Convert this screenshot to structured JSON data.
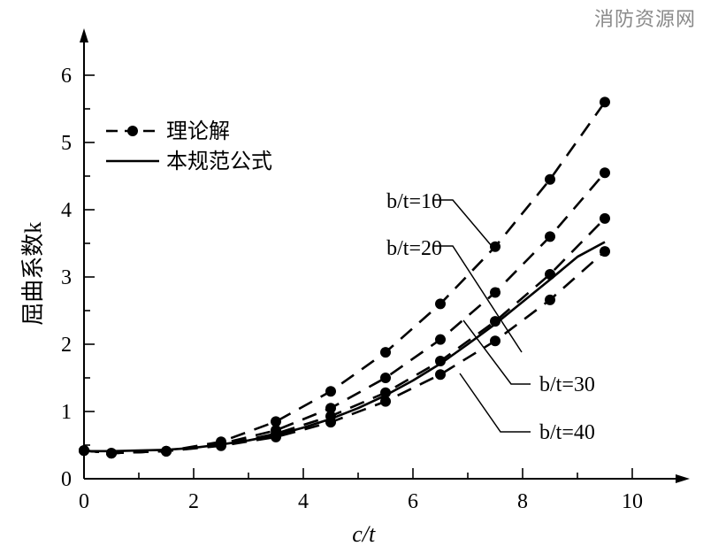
{
  "watermark": "消防资源网",
  "chart_data": {
    "type": "line",
    "title": "",
    "xlabel": "c/t",
    "ylabel": "屈曲系数k",
    "xlim": [
      0,
      10
    ],
    "ylim": [
      0,
      6
    ],
    "xticks": [
      0,
      2,
      4,
      6,
      8,
      10
    ],
    "yticks": [
      0,
      1,
      2,
      3,
      4,
      5,
      6
    ],
    "grid": false,
    "legend": {
      "position": "top-left",
      "entries": [
        {
          "label": "理论解",
          "style": "dashed-with-markers"
        },
        {
          "label": "本规范公式",
          "style": "solid"
        }
      ]
    },
    "series": [
      {
        "name": "b/t=10",
        "kind": "theory",
        "x": [
          0,
          0.5,
          1.5,
          2.5,
          3.5,
          4.5,
          5.5,
          6.5,
          7.5,
          8.5,
          9.5
        ],
        "y": [
          0.42,
          0.38,
          0.41,
          0.55,
          0.85,
          1.3,
          1.88,
          2.6,
          3.45,
          4.45,
          5.6
        ]
      },
      {
        "name": "b/t=20",
        "kind": "theory",
        "x": [
          0,
          0.5,
          1.5,
          2.5,
          3.5,
          4.5,
          5.5,
          6.5,
          7.5,
          8.5,
          9.5
        ],
        "y": [
          0.42,
          0.38,
          0.41,
          0.52,
          0.72,
          1.05,
          1.5,
          2.07,
          2.77,
          3.6,
          4.55
        ]
      },
      {
        "name": "b/t=30",
        "kind": "theory",
        "x": [
          0,
          0.5,
          1.5,
          2.5,
          3.5,
          4.5,
          5.5,
          6.5,
          7.5,
          8.5,
          9.5
        ],
        "y": [
          0.42,
          0.38,
          0.41,
          0.5,
          0.67,
          0.93,
          1.28,
          1.75,
          2.34,
          3.04,
          3.87
        ]
      },
      {
        "name": "b/t=40",
        "kind": "theory",
        "x": [
          0,
          0.5,
          1.5,
          2.5,
          3.5,
          4.5,
          5.5,
          6.5,
          7.5,
          8.5,
          9.5
        ],
        "y": [
          0.42,
          0.38,
          0.41,
          0.49,
          0.62,
          0.84,
          1.15,
          1.55,
          2.05,
          2.66,
          3.38
        ]
      },
      {
        "name": "本规范公式",
        "kind": "formula",
        "x": [
          0,
          0.5,
          1,
          1.5,
          2,
          2.5,
          3,
          3.5,
          4,
          4.5,
          5,
          5.5,
          6,
          6.5,
          7,
          7.5,
          8,
          8.5,
          9,
          9.5
        ],
        "y": [
          0.41,
          0.41,
          0.42,
          0.43,
          0.46,
          0.51,
          0.57,
          0.65,
          0.76,
          0.89,
          1.05,
          1.24,
          1.46,
          1.71,
          2.0,
          2.3,
          2.63,
          2.96,
          3.3,
          3.52
        ]
      }
    ],
    "annotations": [
      {
        "text": "b/t=10",
        "series": "b/t=10"
      },
      {
        "text": "b/t=20",
        "series": "b/t=20"
      },
      {
        "text": "b/t=30",
        "series": "b/t=30"
      },
      {
        "text": "b/t=40",
        "series": "b/t=40"
      }
    ]
  }
}
